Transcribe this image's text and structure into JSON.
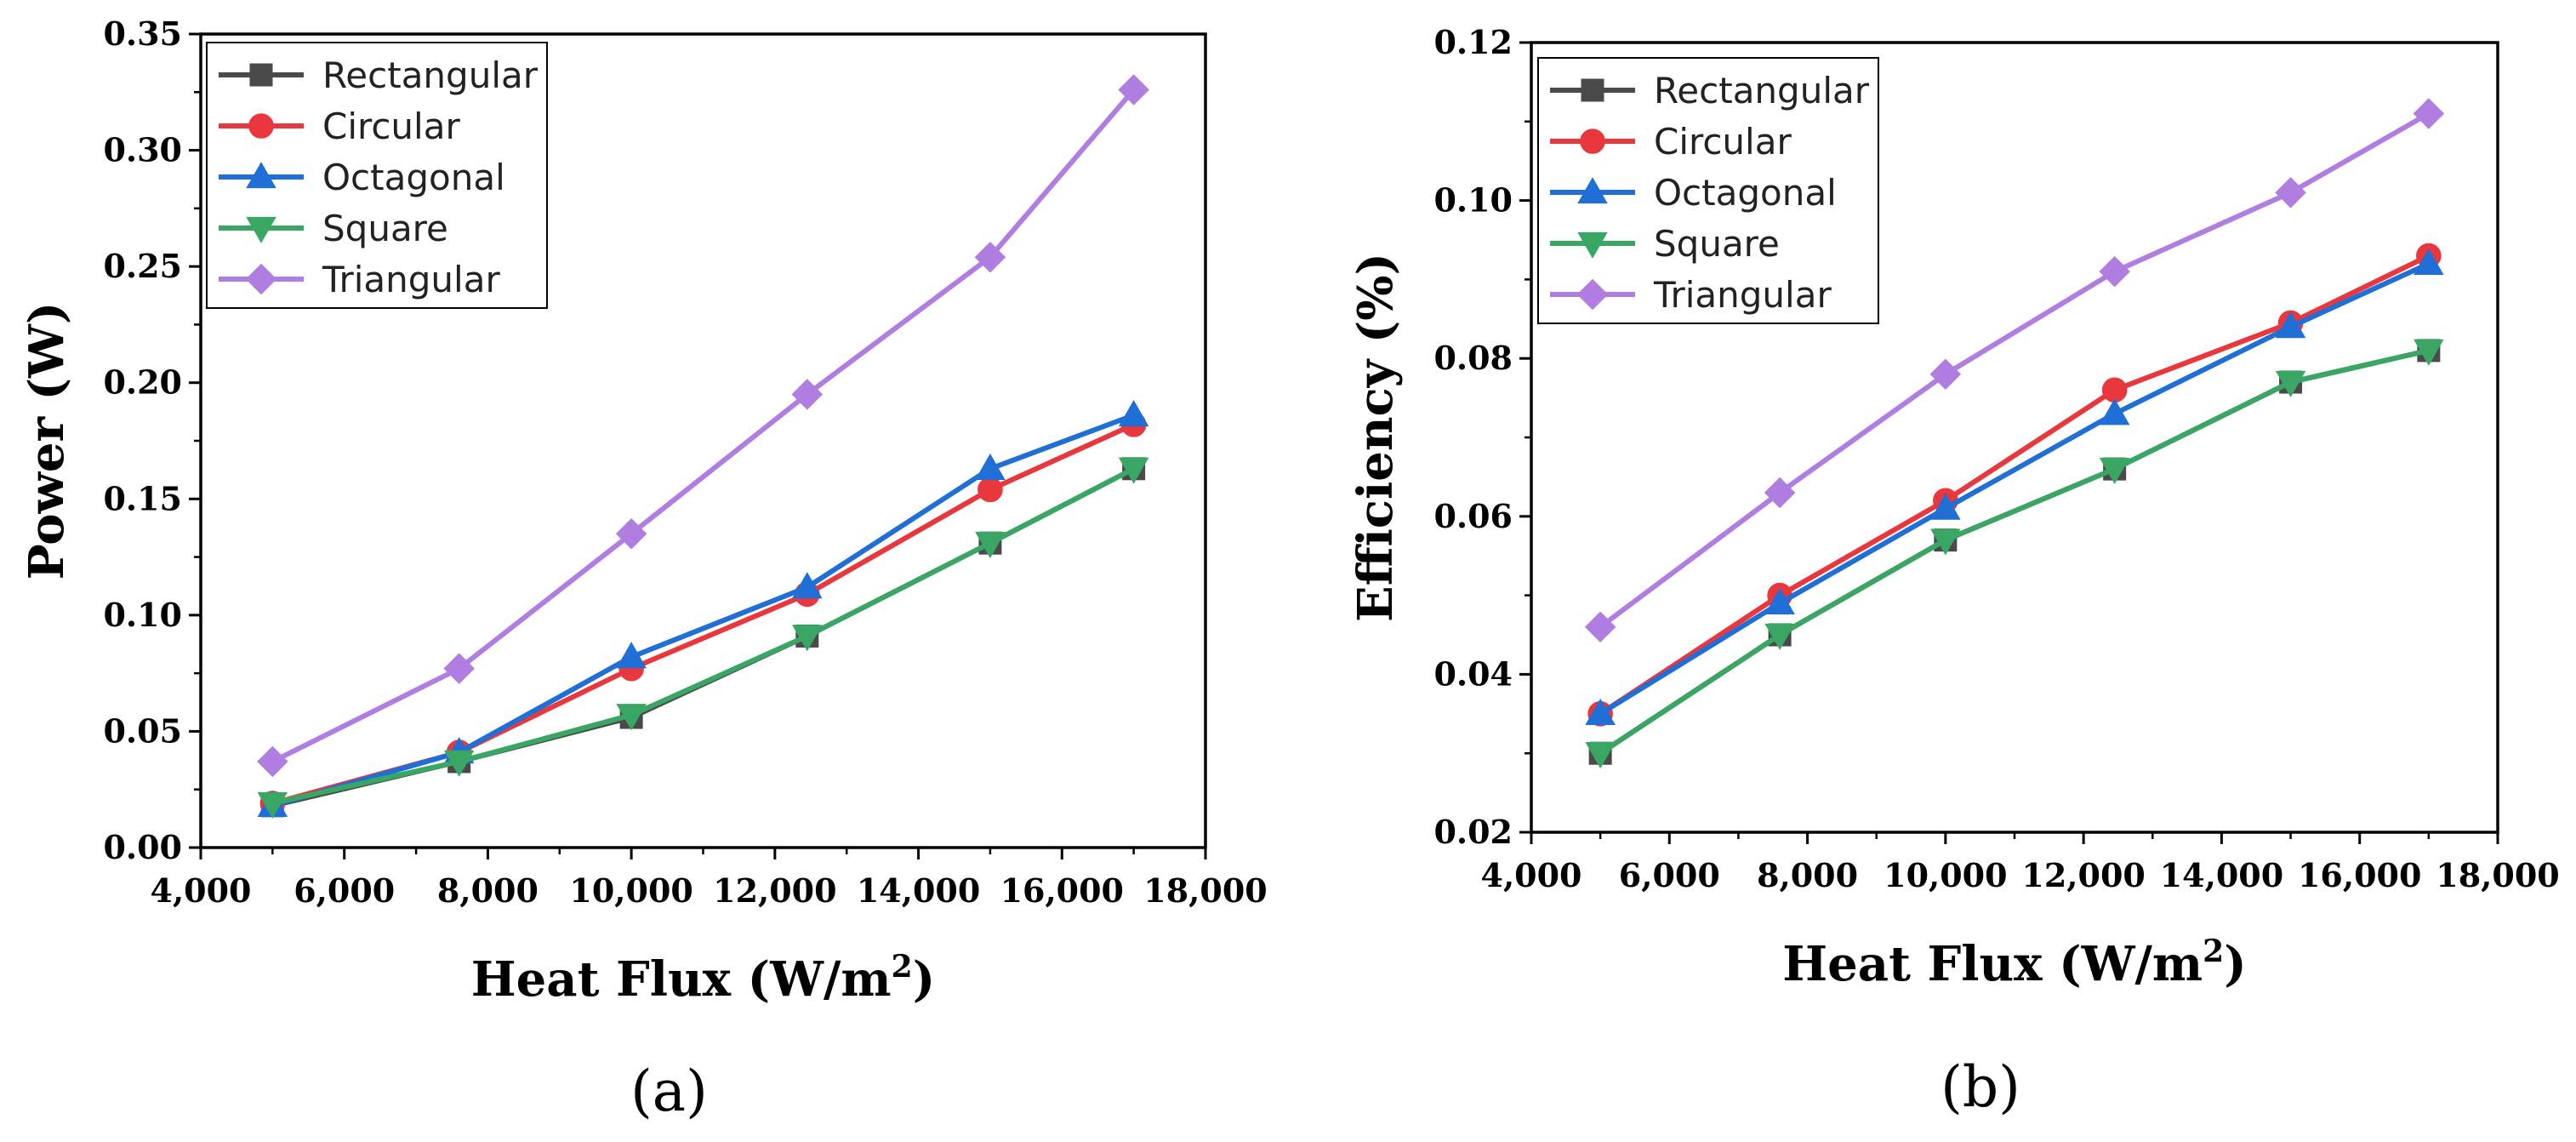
{
  "panels": [
    {
      "label": "(a)"
    },
    {
      "label": "(b)"
    }
  ],
  "chart_data": [
    {
      "type": "line",
      "xlabel": "Heat Flux (W/m",
      "xlabel_sup": "2",
      "xlabel_end": ")",
      "ylabel": "Power (W)",
      "xlim": [
        4000,
        18000
      ],
      "ylim": [
        0,
        0.35
      ],
      "xticks": [
        4000,
        6000,
        8000,
        10000,
        12000,
        14000,
        16000,
        18000
      ],
      "xtick_labels": [
        "4,000",
        "6,000",
        "8,000",
        "10,000",
        "12,000",
        "14,000",
        "16,000",
        "18,000"
      ],
      "yticks": [
        0,
        0.05,
        0.1,
        0.15,
        0.2,
        0.25,
        0.3,
        0.35
      ],
      "ytick_labels": [
        "0.00",
        "0.05",
        "0.10",
        "0.15",
        "0.20",
        "0.25",
        "0.30",
        "0.35"
      ],
      "legend_position": "top-left",
      "grid": false,
      "x": [
        5000,
        7600,
        10000,
        12450,
        15000,
        17000
      ],
      "series": [
        {
          "name": "Rectangular",
          "marker": "square",
          "color": "#4a4a4a",
          "values": [
            0.018,
            0.037,
            0.056,
            0.091,
            0.131,
            0.163
          ]
        },
        {
          "name": "Circular",
          "marker": "circle",
          "color": "#e8383d",
          "values": [
            0.019,
            0.041,
            0.077,
            0.109,
            0.154,
            0.182
          ]
        },
        {
          "name": "Octagonal",
          "marker": "triangle-up",
          "color": "#1f6fd6",
          "values": [
            0.018,
            0.041,
            0.082,
            0.112,
            0.163,
            0.186
          ]
        },
        {
          "name": "Square",
          "marker": "triangle-down",
          "color": "#3aa664",
          "values": [
            0.019,
            0.037,
            0.057,
            0.091,
            0.131,
            0.163
          ]
        },
        {
          "name": "Triangular",
          "marker": "diamond",
          "color": "#b07ee0",
          "values": [
            0.037,
            0.077,
            0.135,
            0.195,
            0.254,
            0.326
          ]
        }
      ]
    },
    {
      "type": "line",
      "xlabel": "Heat Flux (W/m",
      "xlabel_sup": "2",
      "xlabel_end": ")",
      "ylabel": "Efficiency (%)",
      "xlim": [
        4000,
        18000
      ],
      "ylim": [
        0.02,
        0.12
      ],
      "xticks": [
        4000,
        6000,
        8000,
        10000,
        12000,
        14000,
        16000,
        18000
      ],
      "xtick_labels": [
        "4,000",
        "6,000",
        "8,000",
        "10,000",
        "12,000",
        "14,000",
        "16,000",
        "18,000"
      ],
      "yticks": [
        0.02,
        0.04,
        0.06,
        0.08,
        0.1,
        0.12
      ],
      "ytick_labels": [
        "0.02",
        "0.04",
        "0.06",
        "0.08",
        "0.10",
        "0.12"
      ],
      "legend_position": "top-left",
      "grid": false,
      "x": [
        5000,
        7600,
        10000,
        12450,
        15000,
        17000
      ],
      "series": [
        {
          "name": "Rectangular",
          "marker": "square",
          "color": "#4a4a4a",
          "values": [
            0.03,
            0.045,
            0.057,
            0.066,
            0.077,
            0.081
          ]
        },
        {
          "name": "Circular",
          "marker": "circle",
          "color": "#e8383d",
          "values": [
            0.035,
            0.05,
            0.062,
            0.076,
            0.0845,
            0.093
          ]
        },
        {
          "name": "Octagonal",
          "marker": "triangle-up",
          "color": "#1f6fd6",
          "values": [
            0.035,
            0.049,
            0.061,
            0.073,
            0.084,
            0.092
          ]
        },
        {
          "name": "Square",
          "marker": "triangle-down",
          "color": "#3aa664",
          "values": [
            0.03,
            0.045,
            0.057,
            0.066,
            0.077,
            0.081
          ]
        },
        {
          "name": "Triangular",
          "marker": "diamond",
          "color": "#b07ee0",
          "values": [
            0.046,
            0.063,
            0.078,
            0.091,
            0.101,
            0.111
          ]
        }
      ]
    }
  ]
}
